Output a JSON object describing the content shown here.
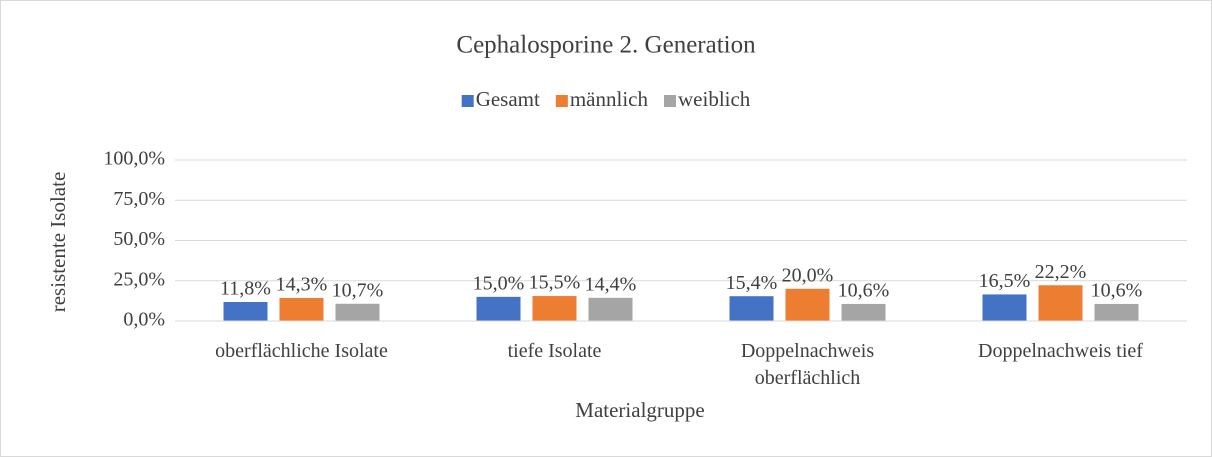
{
  "chart_data": {
    "type": "bar",
    "title": "Cephalosporine 2. Generation",
    "x_label": "Materialgruppe",
    "y_label": "resistente Isolate",
    "categories": [
      "oberflächliche Isolate",
      "tiefe Isolate",
      "Doppelnachweis oberflächlich",
      "Doppelnachweis tief"
    ],
    "series": [
      {
        "name": "Gesamt",
        "color": "#4472c4",
        "values": [
          11.8,
          15.0,
          15.4,
          16.5
        ],
        "value_labels": [
          "11,8%",
          "15,0%",
          "15,4%",
          "16,5%"
        ]
      },
      {
        "name": "männlich",
        "color": "#ed7d31",
        "values": [
          14.3,
          15.5,
          20.0,
          22.2
        ],
        "value_labels": [
          "14,3%",
          "15,5%",
          "20,0%",
          "22,2%"
        ]
      },
      {
        "name": "weiblich",
        "color": "#a5a5a5",
        "values": [
          10.7,
          14.4,
          10.6,
          10.6
        ],
        "value_labels": [
          "10,7%",
          "14,4%",
          "10,6%",
          "10,6%"
        ]
      }
    ],
    "ylim": [
      0,
      100
    ],
    "yticks": [
      {
        "value": 0,
        "label": "0,0%"
      },
      {
        "value": 25,
        "label": "25,0%"
      },
      {
        "value": 50,
        "label": "50,0%"
      },
      {
        "value": 75,
        "label": "75,0%"
      },
      {
        "value": 100,
        "label": "100,0%"
      }
    ],
    "grid": true,
    "legend": "top"
  }
}
